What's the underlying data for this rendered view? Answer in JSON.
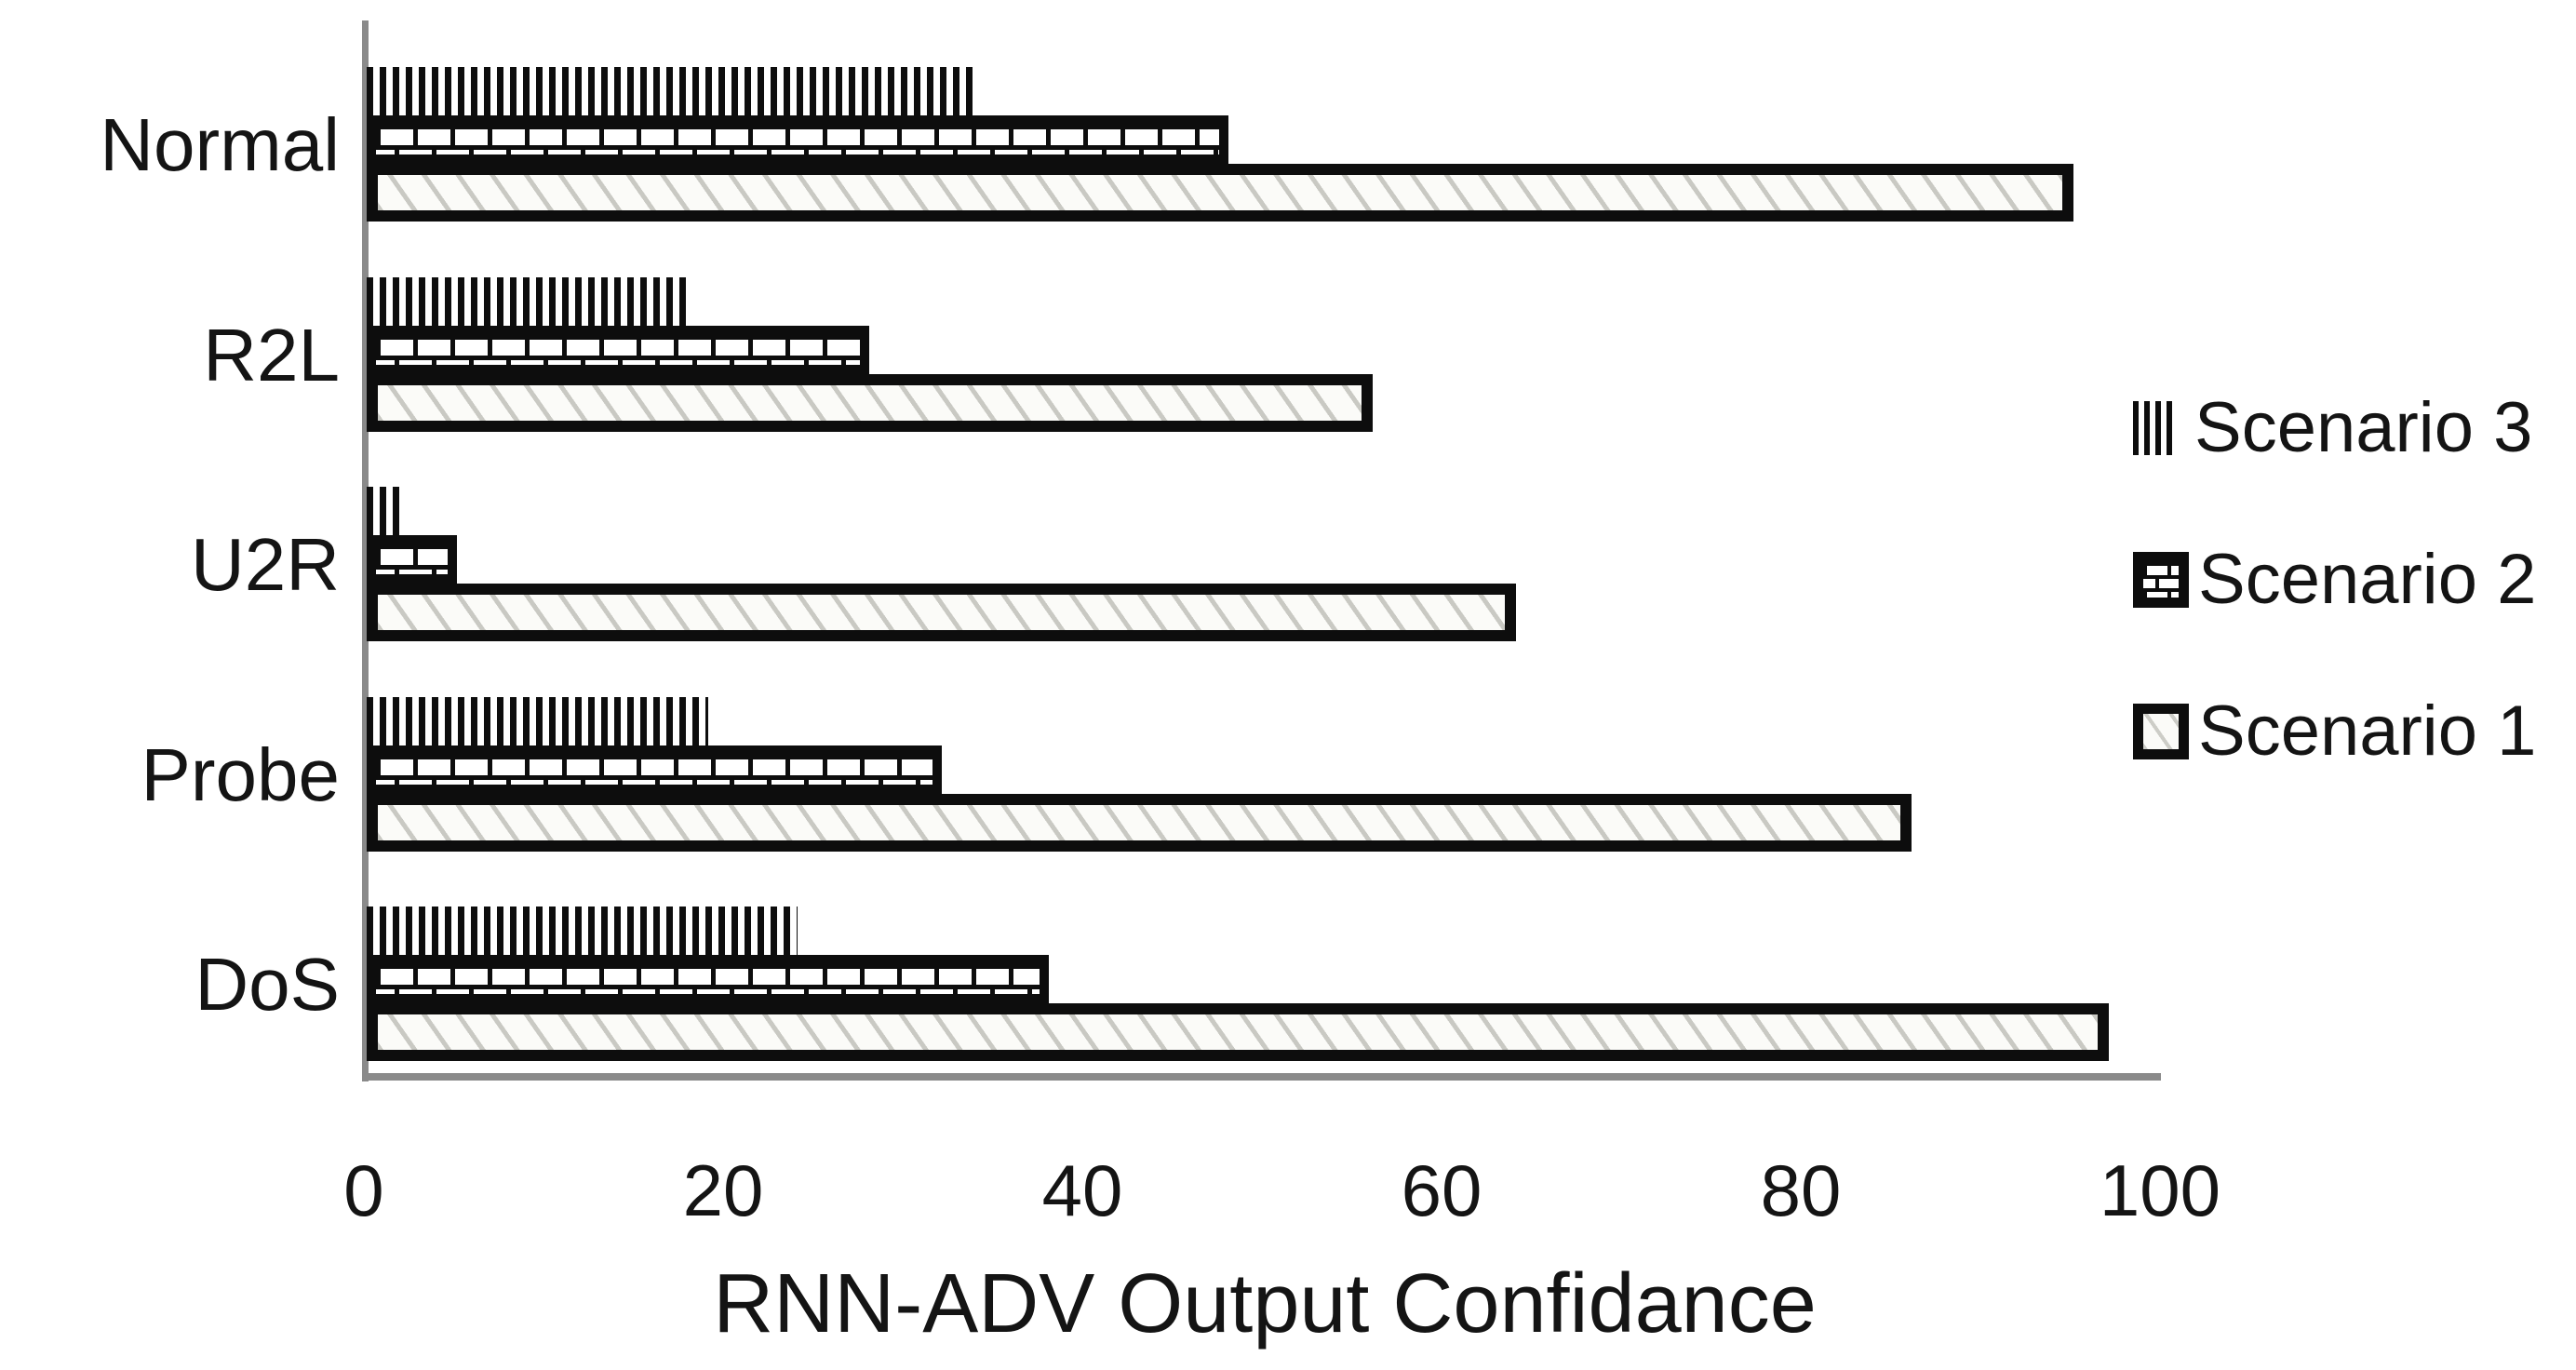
{
  "chart_data": {
    "type": "bar",
    "orientation": "horizontal-grouped",
    "title": "",
    "xlabel": "RNN-ADV Output Confidance",
    "ylabel": "",
    "categories": [
      "Normal",
      "R2L",
      "U2R",
      "Probe",
      "DoS"
    ],
    "series": [
      {
        "name": "Scenario 3",
        "pattern": "vertical-stripes",
        "values": [
          34,
          18,
          2,
          19,
          24
        ]
      },
      {
        "name": "Scenario 2",
        "pattern": "brick",
        "values": [
          48,
          28,
          5,
          32,
          38
        ]
      },
      {
        "name": "Scenario 1",
        "pattern": "diagonal-hatch",
        "values": [
          95,
          56,
          64,
          86,
          97
        ]
      }
    ],
    "x_ticks": [
      0,
      20,
      40,
      60,
      80,
      100
    ],
    "xlim": [
      0,
      100
    ],
    "grid": false,
    "legend_position": "right",
    "legend_order": [
      "Scenario 3",
      "Scenario 2",
      "Scenario 1"
    ],
    "colors": {
      "foreground": "#0d0d0d",
      "axis_line": "#8a8a8a",
      "hatch_line": "#c9c9c3",
      "background": "#ffffff"
    }
  }
}
